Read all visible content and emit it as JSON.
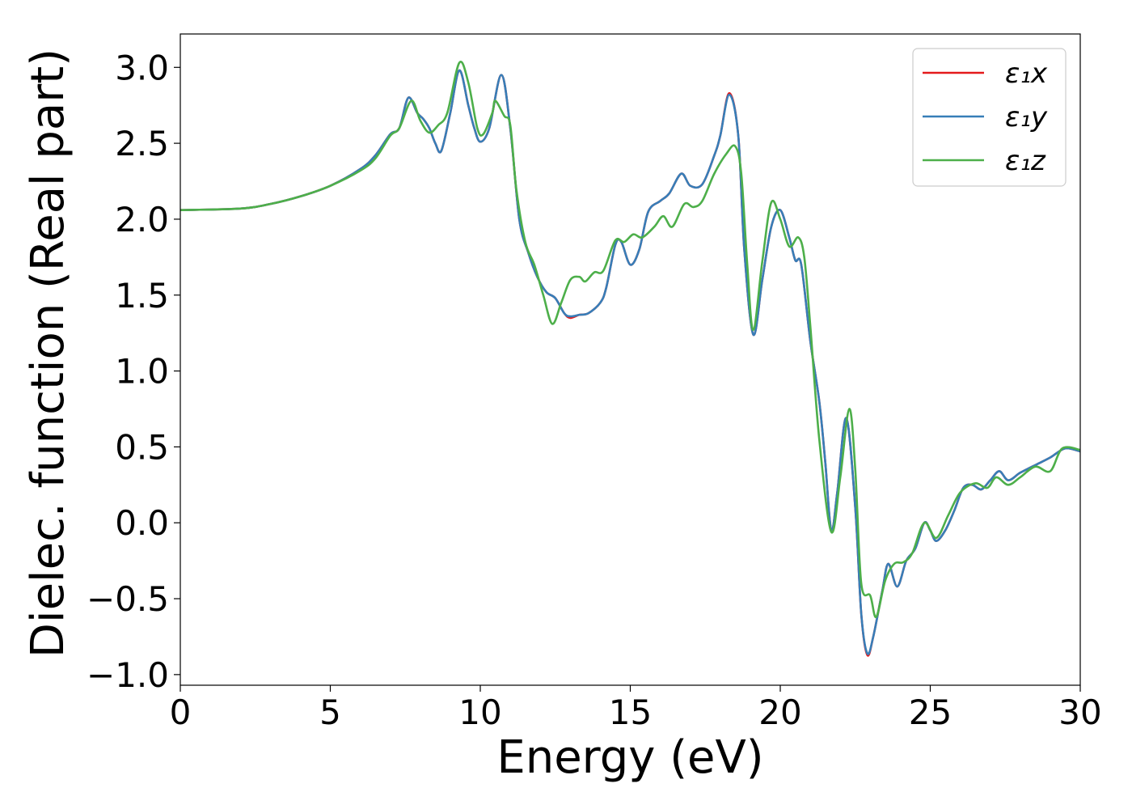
{
  "chart_data": {
    "type": "line",
    "title": "",
    "xlabel": "Energy (eV)",
    "ylabel": "Dielec. function (Real part)",
    "xlim": [
      0,
      30
    ],
    "ylim": [
      -1.07,
      3.22
    ],
    "xticks": [
      0,
      5,
      10,
      15,
      20,
      25,
      30
    ],
    "yticks": [
      -1.0,
      -0.5,
      0.0,
      0.5,
      1.0,
      1.5,
      2.0,
      2.5,
      3.0
    ],
    "xtick_labels": [
      "0",
      "5",
      "10",
      "15",
      "20",
      "25",
      "30"
    ],
    "ytick_labels": [
      "−1.0",
      "−0.5",
      "0.0",
      "0.5",
      "1.0",
      "1.5",
      "2.0",
      "2.5",
      "3.0"
    ],
    "grid": false,
    "legend_position": "top-right",
    "series": [
      {
        "name": "ε₁x",
        "color": "#e41a1c",
        "points": [
          [
            0,
            2.06
          ],
          [
            2,
            2.07
          ],
          [
            3,
            2.1
          ],
          [
            4,
            2.15
          ],
          [
            5,
            2.22
          ],
          [
            6,
            2.33
          ],
          [
            6.5,
            2.42
          ],
          [
            7,
            2.56
          ],
          [
            7.3,
            2.6
          ],
          [
            7.6,
            2.8
          ],
          [
            7.9,
            2.7
          ],
          [
            8.1,
            2.66
          ],
          [
            8.3,
            2.6
          ],
          [
            8.5,
            2.5
          ],
          [
            8.7,
            2.45
          ],
          [
            9.0,
            2.7
          ],
          [
            9.3,
            2.98
          ],
          [
            9.6,
            2.75
          ],
          [
            9.8,
            2.6
          ],
          [
            10.0,
            2.51
          ],
          [
            10.3,
            2.6
          ],
          [
            10.7,
            2.95
          ],
          [
            11.0,
            2.6
          ],
          [
            11.3,
            2.0
          ],
          [
            11.6,
            1.78
          ],
          [
            11.9,
            1.62
          ],
          [
            12.2,
            1.52
          ],
          [
            12.5,
            1.48
          ],
          [
            12.8,
            1.38
          ],
          [
            13.0,
            1.35
          ],
          [
            13.3,
            1.37
          ],
          [
            13.6,
            1.38
          ],
          [
            14.0,
            1.45
          ],
          [
            14.2,
            1.55
          ],
          [
            14.5,
            1.83
          ],
          [
            14.7,
            1.85
          ],
          [
            15.0,
            1.7
          ],
          [
            15.3,
            1.8
          ],
          [
            15.6,
            2.05
          ],
          [
            16.0,
            2.12
          ],
          [
            16.3,
            2.17
          ],
          [
            16.7,
            2.3
          ],
          [
            17.0,
            2.22
          ],
          [
            17.4,
            2.23
          ],
          [
            17.8,
            2.42
          ],
          [
            18.0,
            2.55
          ],
          [
            18.3,
            2.83
          ],
          [
            18.6,
            2.55
          ],
          [
            18.8,
            1.8
          ],
          [
            19.1,
            1.24
          ],
          [
            19.4,
            1.6
          ],
          [
            19.7,
            1.95
          ],
          [
            20.0,
            2.06
          ],
          [
            20.3,
            1.88
          ],
          [
            20.5,
            1.73
          ],
          [
            20.7,
            1.7
          ],
          [
            21.0,
            1.2
          ],
          [
            21.3,
            0.8
          ],
          [
            21.5,
            0.4
          ],
          [
            21.7,
            -0.05
          ],
          [
            21.9,
            0.2
          ],
          [
            22.2,
            0.69
          ],
          [
            22.5,
            0.1
          ],
          [
            22.7,
            -0.6
          ],
          [
            22.9,
            -0.87
          ],
          [
            23.1,
            -0.75
          ],
          [
            23.4,
            -0.45
          ],
          [
            23.6,
            -0.27
          ],
          [
            23.9,
            -0.42
          ],
          [
            24.2,
            -0.25
          ],
          [
            24.5,
            -0.17
          ],
          [
            24.8,
            0.0
          ],
          [
            25.0,
            -0.05
          ],
          [
            25.2,
            -0.12
          ],
          [
            25.5,
            -0.05
          ],
          [
            25.8,
            0.08
          ],
          [
            26.1,
            0.23
          ],
          [
            26.4,
            0.25
          ],
          [
            26.7,
            0.22
          ],
          [
            27.0,
            0.28
          ],
          [
            27.3,
            0.34
          ],
          [
            27.6,
            0.28
          ],
          [
            28.0,
            0.33
          ],
          [
            28.5,
            0.38
          ],
          [
            29.0,
            0.43
          ],
          [
            29.5,
            0.49
          ],
          [
            30.0,
            0.47
          ]
        ]
      },
      {
        "name": "ε₁y",
        "color": "#377eb8",
        "points": [
          [
            0,
            2.06
          ],
          [
            2,
            2.07
          ],
          [
            3,
            2.1
          ],
          [
            4,
            2.15
          ],
          [
            5,
            2.22
          ],
          [
            6,
            2.33
          ],
          [
            6.5,
            2.42
          ],
          [
            7,
            2.56
          ],
          [
            7.3,
            2.6
          ],
          [
            7.6,
            2.8
          ],
          [
            7.9,
            2.7
          ],
          [
            8.1,
            2.66
          ],
          [
            8.3,
            2.6
          ],
          [
            8.5,
            2.5
          ],
          [
            8.7,
            2.45
          ],
          [
            9.0,
            2.7
          ],
          [
            9.3,
            2.98
          ],
          [
            9.6,
            2.75
          ],
          [
            9.8,
            2.6
          ],
          [
            10.0,
            2.51
          ],
          [
            10.3,
            2.6
          ],
          [
            10.7,
            2.95
          ],
          [
            11.0,
            2.6
          ],
          [
            11.3,
            2.0
          ],
          [
            11.6,
            1.78
          ],
          [
            11.9,
            1.62
          ],
          [
            12.2,
            1.52
          ],
          [
            12.5,
            1.48
          ],
          [
            12.8,
            1.38
          ],
          [
            13.0,
            1.36
          ],
          [
            13.3,
            1.37
          ],
          [
            13.6,
            1.38
          ],
          [
            14.0,
            1.45
          ],
          [
            14.2,
            1.55
          ],
          [
            14.5,
            1.83
          ],
          [
            14.7,
            1.85
          ],
          [
            15.0,
            1.7
          ],
          [
            15.3,
            1.8
          ],
          [
            15.6,
            2.05
          ],
          [
            16.0,
            2.12
          ],
          [
            16.3,
            2.17
          ],
          [
            16.7,
            2.3
          ],
          [
            17.0,
            2.22
          ],
          [
            17.4,
            2.23
          ],
          [
            17.8,
            2.42
          ],
          [
            18.0,
            2.55
          ],
          [
            18.3,
            2.82
          ],
          [
            18.6,
            2.55
          ],
          [
            18.8,
            1.8
          ],
          [
            19.1,
            1.24
          ],
          [
            19.4,
            1.6
          ],
          [
            19.7,
            1.95
          ],
          [
            20.0,
            2.06
          ],
          [
            20.3,
            1.88
          ],
          [
            20.5,
            1.73
          ],
          [
            20.7,
            1.7
          ],
          [
            21.0,
            1.2
          ],
          [
            21.3,
            0.8
          ],
          [
            21.5,
            0.4
          ],
          [
            21.7,
            -0.05
          ],
          [
            21.9,
            0.2
          ],
          [
            22.2,
            0.69
          ],
          [
            22.5,
            0.1
          ],
          [
            22.7,
            -0.6
          ],
          [
            22.9,
            -0.86
          ],
          [
            23.1,
            -0.75
          ],
          [
            23.4,
            -0.45
          ],
          [
            23.6,
            -0.27
          ],
          [
            23.9,
            -0.42
          ],
          [
            24.2,
            -0.25
          ],
          [
            24.5,
            -0.17
          ],
          [
            24.8,
            0.0
          ],
          [
            25.0,
            -0.05
          ],
          [
            25.2,
            -0.12
          ],
          [
            25.5,
            -0.05
          ],
          [
            25.8,
            0.08
          ],
          [
            26.1,
            0.23
          ],
          [
            26.4,
            0.25
          ],
          [
            26.7,
            0.22
          ],
          [
            27.0,
            0.28
          ],
          [
            27.3,
            0.34
          ],
          [
            27.6,
            0.28
          ],
          [
            28.0,
            0.33
          ],
          [
            28.5,
            0.38
          ],
          [
            29.0,
            0.43
          ],
          [
            29.5,
            0.49
          ],
          [
            30.0,
            0.47
          ]
        ]
      },
      {
        "name": "ε₁z",
        "color": "#4daf4a",
        "points": [
          [
            0,
            2.06
          ],
          [
            2,
            2.07
          ],
          [
            3,
            2.1
          ],
          [
            4,
            2.15
          ],
          [
            5,
            2.22
          ],
          [
            6,
            2.32
          ],
          [
            6.5,
            2.4
          ],
          [
            7,
            2.55
          ],
          [
            7.3,
            2.6
          ],
          [
            7.7,
            2.78
          ],
          [
            8.0,
            2.65
          ],
          [
            8.3,
            2.57
          ],
          [
            8.6,
            2.62
          ],
          [
            8.9,
            2.7
          ],
          [
            9.3,
            3.03
          ],
          [
            9.6,
            2.9
          ],
          [
            9.9,
            2.6
          ],
          [
            10.1,
            2.56
          ],
          [
            10.4,
            2.7
          ],
          [
            10.5,
            2.78
          ],
          [
            10.8,
            2.68
          ],
          [
            11.0,
            2.62
          ],
          [
            11.2,
            2.2
          ],
          [
            11.5,
            1.85
          ],
          [
            11.8,
            1.7
          ],
          [
            12.1,
            1.5
          ],
          [
            12.4,
            1.31
          ],
          [
            12.7,
            1.45
          ],
          [
            13.0,
            1.6
          ],
          [
            13.3,
            1.62
          ],
          [
            13.5,
            1.59
          ],
          [
            13.8,
            1.65
          ],
          [
            14.1,
            1.66
          ],
          [
            14.5,
            1.86
          ],
          [
            14.8,
            1.85
          ],
          [
            15.1,
            1.9
          ],
          [
            15.4,
            1.88
          ],
          [
            15.8,
            1.95
          ],
          [
            16.1,
            2.02
          ],
          [
            16.4,
            1.95
          ],
          [
            16.8,
            2.1
          ],
          [
            17.1,
            2.08
          ],
          [
            17.4,
            2.12
          ],
          [
            17.8,
            2.3
          ],
          [
            18.2,
            2.43
          ],
          [
            18.5,
            2.48
          ],
          [
            18.7,
            2.3
          ],
          [
            18.9,
            1.7
          ],
          [
            19.1,
            1.27
          ],
          [
            19.4,
            1.72
          ],
          [
            19.7,
            2.11
          ],
          [
            20.0,
            2.0
          ],
          [
            20.3,
            1.82
          ],
          [
            20.6,
            1.88
          ],
          [
            20.8,
            1.75
          ],
          [
            21.0,
            1.3
          ],
          [
            21.3,
            0.55
          ],
          [
            21.7,
            -0.06
          ],
          [
            22.0,
            0.3
          ],
          [
            22.3,
            0.75
          ],
          [
            22.5,
            0.35
          ],
          [
            22.7,
            -0.4
          ],
          [
            23.0,
            -0.48
          ],
          [
            23.2,
            -0.62
          ],
          [
            23.5,
            -0.38
          ],
          [
            23.8,
            -0.27
          ],
          [
            24.1,
            -0.26
          ],
          [
            24.4,
            -0.2
          ],
          [
            24.8,
            0.0
          ],
          [
            25.2,
            -0.1
          ],
          [
            25.6,
            0.05
          ],
          [
            26.0,
            0.2
          ],
          [
            26.5,
            0.26
          ],
          [
            26.9,
            0.23
          ],
          [
            27.2,
            0.3
          ],
          [
            27.6,
            0.25
          ],
          [
            28.0,
            0.3
          ],
          [
            28.5,
            0.37
          ],
          [
            29.0,
            0.34
          ],
          [
            29.4,
            0.49
          ],
          [
            30.0,
            0.48
          ]
        ]
      }
    ]
  }
}
